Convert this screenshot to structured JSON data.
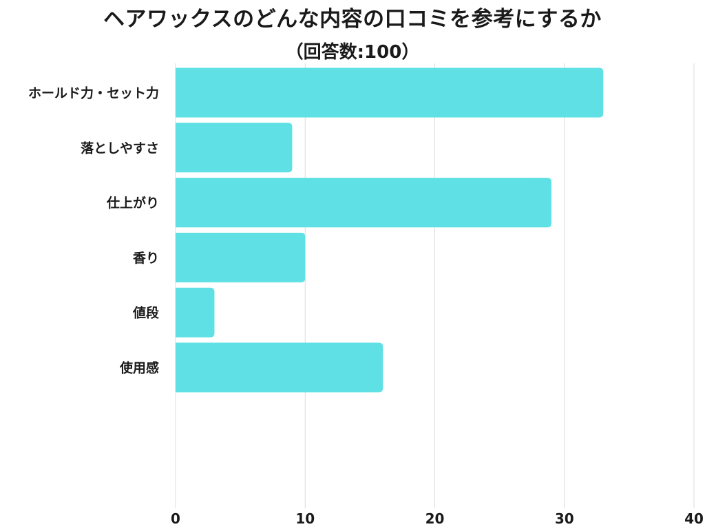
{
  "chart_data": {
    "type": "bar",
    "orientation": "horizontal",
    "title": "ヘアワックスのどんな内容の口コミを参考にするか",
    "subtitle": "（回答数:100）",
    "categories": [
      "ホールド力・セット力",
      "落としやすさ",
      "仕上がり",
      "香り",
      "値段",
      "使用感"
    ],
    "values": [
      33,
      9,
      29,
      10,
      3,
      16
    ],
    "xlim": [
      0,
      40
    ],
    "xticks": [
      0,
      10,
      20,
      30,
      40
    ],
    "xlabel": "",
    "ylabel": "",
    "grid": true,
    "bar_color": "#5ee0e4"
  }
}
